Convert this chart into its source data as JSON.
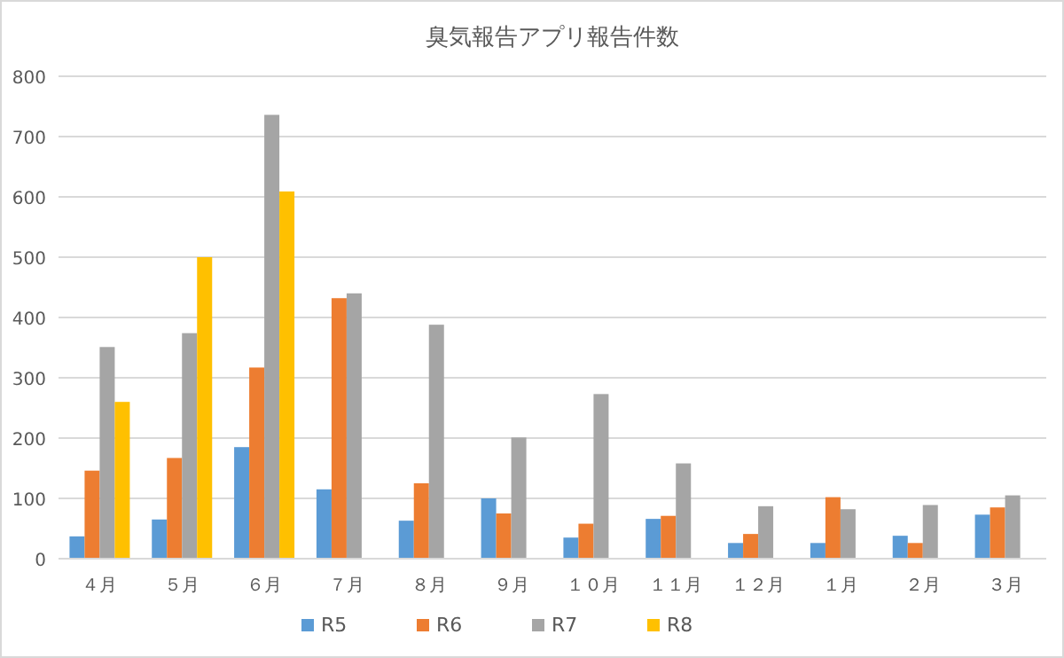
{
  "chart_data": {
    "type": "bar",
    "title": "臭気報告アプリ報告件数",
    "categories": [
      "４月",
      "５月",
      "６月",
      "７月",
      "８月",
      "９月",
      "１０月",
      "１１月",
      "１２月",
      "１月",
      "２月",
      "３月"
    ],
    "series": [
      {
        "name": "R5",
        "color": "#5b9bd5",
        "values": [
          37,
          65,
          185,
          115,
          63,
          100,
          35,
          66,
          26,
          26,
          38,
          73
        ]
      },
      {
        "name": "R6",
        "color": "#ed7d31",
        "values": [
          146,
          167,
          317,
          432,
          125,
          75,
          58,
          71,
          41,
          102,
          26,
          85
        ]
      },
      {
        "name": "R7",
        "color": "#a5a5a5",
        "values": [
          351,
          374,
          736,
          440,
          388,
          201,
          273,
          158,
          87,
          82,
          89,
          105
        ]
      },
      {
        "name": "R8",
        "color": "#ffc000",
        "values": [
          260,
          500,
          609,
          null,
          null,
          null,
          null,
          null,
          null,
          null,
          null,
          null
        ]
      }
    ],
    "ylim": [
      0,
      800
    ],
    "yticks": [
      0,
      100,
      200,
      300,
      400,
      500,
      600,
      700,
      800
    ],
    "grid": "y",
    "legend": "bottom"
  }
}
